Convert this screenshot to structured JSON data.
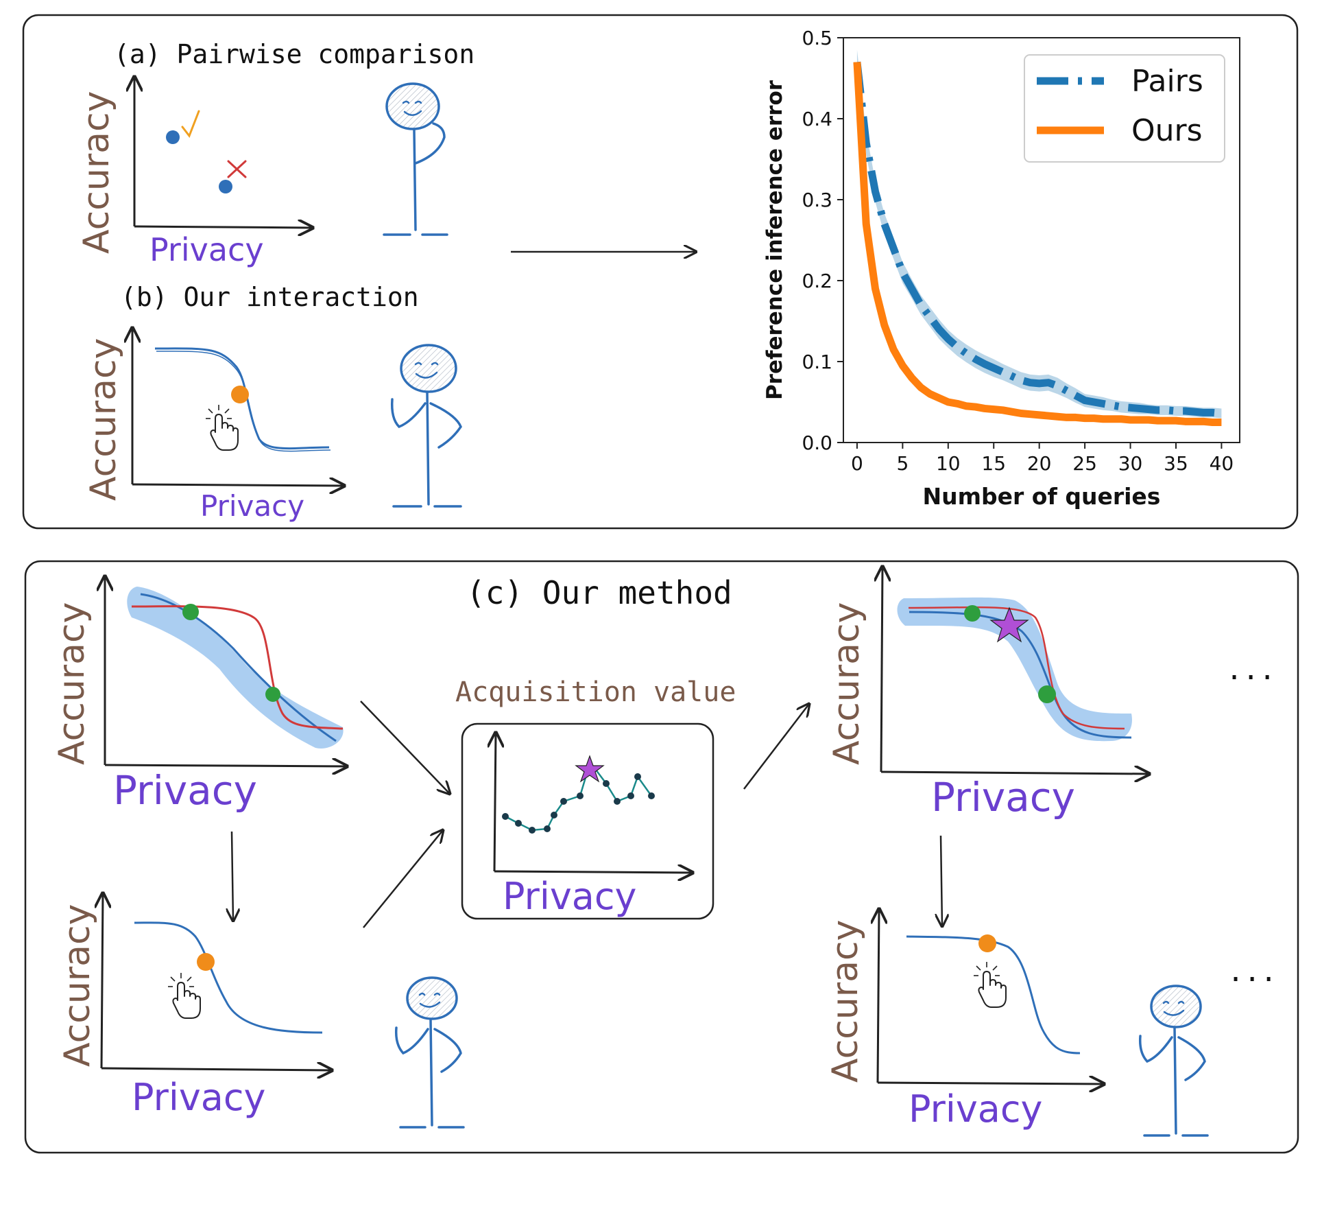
{
  "panel_a": {
    "title": "(a) Pairwise comparison",
    "y_label": "Accuracy",
    "x_label": "Privacy"
  },
  "panel_b": {
    "title": "(b) Our interaction",
    "y_label": "Accuracy",
    "x_label": "Privacy"
  },
  "panel_c": {
    "title": "(c) Our method",
    "acquisition_title": "Acquisition value",
    "y_label": "Accuracy",
    "x_label": "Privacy",
    "ellipsis": "..."
  },
  "colors": {
    "accuracy_label": "#7a5a4a",
    "privacy_label": "#6a3fcf",
    "curve_blue": "#2f6fb8",
    "curve_red": "#d13a3a",
    "band": "#9cc6ee",
    "point_green": "#2e9e3e",
    "point_orange": "#f08c1a",
    "star": "#b04fd6",
    "pairs": "#1f77b4",
    "ours": "#ff7f0e"
  },
  "icons": [
    "check-icon",
    "cross-icon",
    "pointer-hand-icon",
    "star-icon",
    "stick-figure-icon"
  ],
  "chart_data": {
    "type": "line",
    "xlabel": "Number of queries",
    "ylabel": "Preference inference error",
    "xlim": [
      -1.5,
      42
    ],
    "ylim": [
      0,
      0.5
    ],
    "xticks": [
      0,
      5,
      10,
      15,
      20,
      25,
      30,
      35,
      40
    ],
    "yticks": [
      0.0,
      0.1,
      0.2,
      0.3,
      0.4,
      0.5
    ],
    "ytick_labels": [
      "0.0",
      "0.1",
      "0.2",
      "0.3",
      "0.4",
      "0.5"
    ],
    "legend_position": "top-right",
    "series": [
      {
        "name": "Pairs",
        "style": "dashdot",
        "x": [
          0,
          1,
          2,
          3,
          4,
          5,
          6,
          7,
          8,
          9,
          10,
          11,
          12,
          13,
          14,
          15,
          16,
          17,
          18,
          19,
          20,
          21,
          22,
          23,
          24,
          25,
          26,
          27,
          28,
          29,
          30,
          31,
          32,
          33,
          34,
          35,
          36,
          37,
          38,
          39,
          40
        ],
        "values": [
          0.47,
          0.37,
          0.31,
          0.27,
          0.24,
          0.21,
          0.19,
          0.17,
          0.155,
          0.14,
          0.128,
          0.118,
          0.11,
          0.103,
          0.097,
          0.092,
          0.087,
          0.082,
          0.077,
          0.074,
          0.073,
          0.074,
          0.07,
          0.064,
          0.058,
          0.052,
          0.05,
          0.048,
          0.046,
          0.044,
          0.043,
          0.042,
          0.041,
          0.04,
          0.04,
          0.039,
          0.039,
          0.038,
          0.037,
          0.037,
          0.036
        ],
        "band": [
          0.015,
          0.014,
          0.013,
          0.013,
          0.013,
          0.013,
          0.012,
          0.012,
          0.012,
          0.012,
          0.011,
          0.011,
          0.011,
          0.011,
          0.011,
          0.011,
          0.01,
          0.01,
          0.01,
          0.01,
          0.01,
          0.01,
          0.01,
          0.009,
          0.009,
          0.008,
          0.008,
          0.008,
          0.007,
          0.007,
          0.007,
          0.007,
          0.006,
          0.006,
          0.006,
          0.006,
          0.006,
          0.006,
          0.006,
          0.006,
          0.006
        ]
      },
      {
        "name": "Ours",
        "style": "solid",
        "x": [
          0,
          1,
          2,
          3,
          4,
          5,
          6,
          7,
          8,
          9,
          10,
          11,
          12,
          13,
          14,
          15,
          16,
          17,
          18,
          19,
          20,
          21,
          22,
          23,
          24,
          25,
          26,
          27,
          28,
          29,
          30,
          31,
          32,
          33,
          34,
          35,
          36,
          37,
          38,
          39,
          40
        ],
        "values": [
          0.47,
          0.27,
          0.19,
          0.145,
          0.115,
          0.095,
          0.08,
          0.068,
          0.06,
          0.055,
          0.05,
          0.048,
          0.045,
          0.044,
          0.042,
          0.041,
          0.04,
          0.038,
          0.036,
          0.035,
          0.034,
          0.033,
          0.032,
          0.031,
          0.031,
          0.03,
          0.03,
          0.029,
          0.029,
          0.029,
          0.028,
          0.028,
          0.028,
          0.027,
          0.027,
          0.027,
          0.026,
          0.026,
          0.026,
          0.025,
          0.025
        ]
      }
    ]
  }
}
